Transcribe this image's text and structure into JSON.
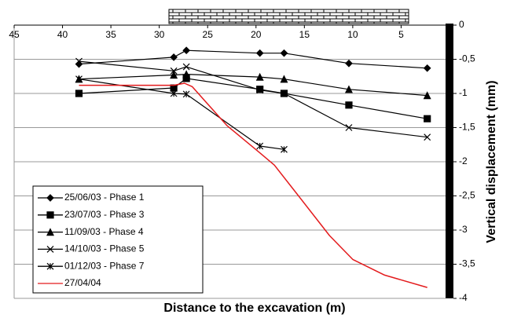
{
  "chart_data": {
    "type": "line",
    "x_label": "Distance to the excavation (m)",
    "y_label": "Vertical displacement (mm)",
    "xlim": [
      45,
      0
    ],
    "xticks": [
      45,
      40,
      35,
      30,
      25,
      20,
      15,
      10,
      5
    ],
    "ylim": [
      0,
      -4
    ],
    "yticks": [
      0,
      {
        "value": -0.5,
        "label": "-0,5"
      },
      -1,
      {
        "value": -1.5,
        "label": "-1,5"
      },
      -2,
      {
        "value": -2.5,
        "label": "-2,5"
      },
      -3,
      {
        "value": -3.5,
        "label": "-3,5"
      },
      -4
    ],
    "grid": true,
    "legend": "lower left",
    "series": [
      {
        "name": "25/06/03 - Phase 1",
        "color": "#000000",
        "marker": "diamond",
        "x": [
          38.3,
          28.5,
          27.2,
          19.6,
          17.1,
          10.4,
          2.3
        ],
        "values": [
          -0.57,
          -0.47,
          -0.37,
          -0.41,
          -0.41,
          -0.56,
          -0.63
        ]
      },
      {
        "name": "23/07/03 - Phase 3",
        "color": "#000000",
        "marker": "square",
        "x": [
          38.3,
          28.5,
          27.2,
          19.6,
          17.1,
          10.4,
          2.3
        ],
        "values": [
          -1.0,
          -0.92,
          -0.78,
          -0.94,
          -1.0,
          -1.17,
          -1.37
        ]
      },
      {
        "name": "11/09/03 - Phase 4",
        "color": "#000000",
        "marker": "triangle",
        "x": [
          38.3,
          28.5,
          27.2,
          19.6,
          17.1,
          10.4,
          2.3
        ],
        "values": [
          -0.79,
          -0.73,
          -0.72,
          -0.76,
          -0.79,
          -0.94,
          -1.03
        ]
      },
      {
        "name": "14/10/03 - Phase 5",
        "color": "#000000",
        "marker": "x",
        "x": [
          38.3,
          28.5,
          27.2,
          19.6,
          17.1,
          10.4,
          2.3
        ],
        "values": [
          -0.53,
          -0.67,
          -0.61,
          -0.95,
          -1.0,
          -1.5,
          -1.64
        ]
      },
      {
        "name": "01/12/03 - Phase 7",
        "color": "#000000",
        "marker": "star",
        "x": [
          38.3,
          28.5,
          27.2,
          19.6,
          17.1
        ],
        "values": [
          -0.79,
          -1.0,
          -1.01,
          -1.77,
          -1.82
        ]
      },
      {
        "name": "27/04/04",
        "color": "#e31a1c",
        "marker": "none",
        "x": [
          38.3,
          28.5,
          27.4,
          26.6,
          23.0,
          19.6,
          18.1,
          15.6,
          12.4,
          10.0,
          6.7,
          2.3
        ],
        "values": [
          -0.88,
          -0.88,
          -0.85,
          -0.9,
          -1.47,
          -1.87,
          -2.05,
          -2.5,
          -3.08,
          -3.43,
          -3.66,
          -3.84
        ]
      }
    ]
  }
}
